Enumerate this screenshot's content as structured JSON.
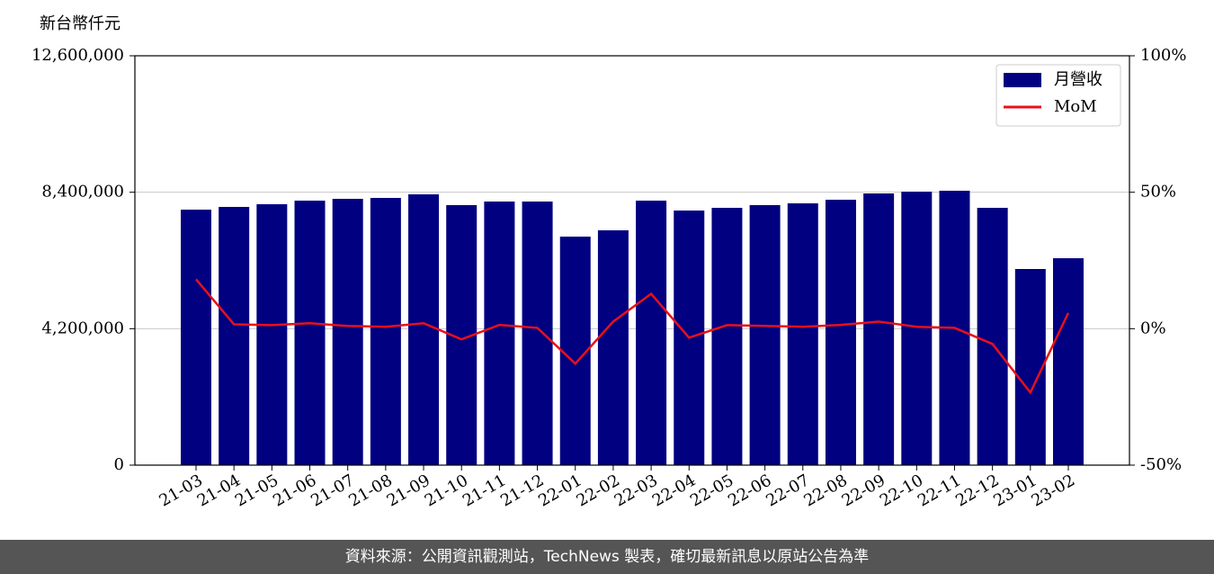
{
  "chart_data": {
    "type": "bar",
    "y_label": "新台幣仟元",
    "categories": [
      "21-03",
      "21-04",
      "21-05",
      "21-06",
      "21-07",
      "21-08",
      "21-09",
      "21-10",
      "21-11",
      "21-12",
      "22-01",
      "22-02",
      "22-03",
      "22-04",
      "22-05",
      "22-06",
      "22-07",
      "22-08",
      "22-09",
      "22-10",
      "22-11",
      "22-12",
      "23-01",
      "23-02"
    ],
    "series": [
      {
        "name": "月營收",
        "type": "bar",
        "color": "#000080",
        "values": [
          7864000,
          7948000,
          8031000,
          8141000,
          8197000,
          8225000,
          8335000,
          8003000,
          8114000,
          8114000,
          7034000,
          7228000,
          8141000,
          7837000,
          7920000,
          8003000,
          8058000,
          8169000,
          8363000,
          8418000,
          8446000,
          7920000,
          6037000,
          6369000
        ]
      },
      {
        "name": "MoM",
        "type": "line",
        "color": "#e8101a",
        "axis": "y2",
        "values": [
          18.1,
          1.6,
          1.3,
          2.0,
          1.0,
          0.7,
          2.0,
          -3.9,
          1.4,
          0.3,
          -12.8,
          2.6,
          12.8,
          -3.3,
          1.3,
          1.0,
          0.7,
          1.4,
          2.6,
          0.7,
          0.3,
          -5.6,
          -23.4,
          5.8
        ]
      }
    ],
    "ylim": [
      0,
      12600000
    ],
    "yticks": [
      0,
      {
        "value": 4200000,
        "label": "4,200,000"
      },
      {
        "value": 8400000,
        "label": "8,400,000"
      },
      {
        "value": 12600000,
        "label": "12,600,000"
      }
    ],
    "y2lim": [
      -50,
      100
    ],
    "y2ticks": [
      {
        "value": -50,
        "label": "-50%"
      },
      {
        "value": 0,
        "label": "0%"
      },
      {
        "value": 50,
        "label": "50%"
      },
      {
        "value": 100,
        "label": "100%"
      }
    ],
    "grid": true,
    "legend": "upper right"
  },
  "footer": "資料來源：公開資訊觀測站，TechNews 製表，確切最新訊息以原站公告為準"
}
